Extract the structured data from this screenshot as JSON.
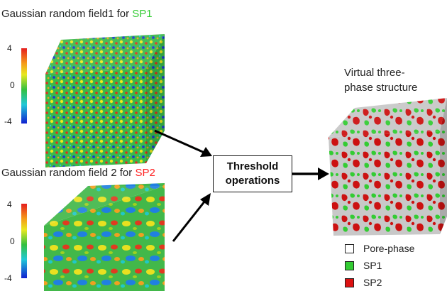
{
  "field1": {
    "title_prefix": "Gaussian random field1 for ",
    "title_highlight": "SP1",
    "highlight_color": "#33cc33",
    "colorbar": {
      "max_label": "4",
      "mid_label": "0",
      "min_label": "-4"
    }
  },
  "field2": {
    "title_prefix": "Gaussian random field 2 for ",
    "title_highlight": "SP2",
    "highlight_color": "#ff2020",
    "colorbar": {
      "max_label": "4",
      "mid_label": "0",
      "min_label": "-4"
    }
  },
  "operation": {
    "line1": "Threshold",
    "line2": "operations"
  },
  "output": {
    "title_line1": "Virtual three-",
    "title_line2": "phase structure"
  },
  "legend": [
    {
      "label": "Pore-phase",
      "color": "#ffffff"
    },
    {
      "label": "SP1",
      "color": "#33cc33"
    },
    {
      "label": "SP2",
      "color": "#dd1111"
    }
  ],
  "colors": {
    "arrow": "#000000",
    "pore": "#c8c8c8",
    "sp1": "#33cc33",
    "sp2": "#cc1111"
  }
}
